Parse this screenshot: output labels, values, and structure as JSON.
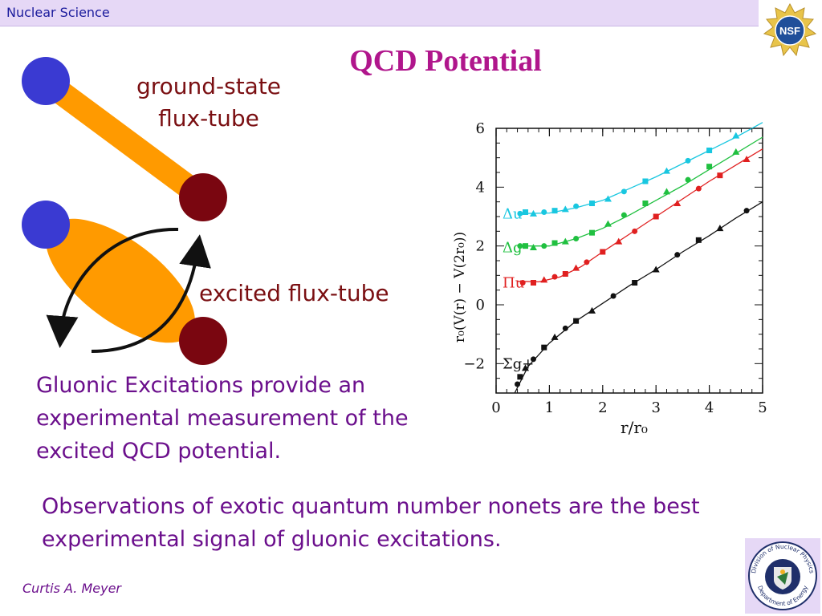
{
  "header": {
    "text": "Nuclear Science"
  },
  "slide": {
    "title": "QCD Potential",
    "ground_state_label_line1": "ground-state",
    "ground_state_label_line2": "flux-tube",
    "excited_label": "excited flux-tube",
    "gluonic_text": "Gluonic Excitations provide an experimental measurement of the excited QCD potential.",
    "observations_text": "Observations of exotic quantum number nonets are the best experimental signal of gluonic excitations."
  },
  "footer": {
    "author": "Curtis A. Meyer"
  },
  "logos": {
    "nsf": {
      "text": "NSF"
    },
    "doe": {
      "text_top": "Division of Nuclear Physics",
      "text_bottom": "Department of Energy"
    }
  },
  "colors": {
    "quark_blue": "#3a3ad2",
    "quark_red": "#7a0610",
    "flux_orange": "#ff9a00",
    "title_magenta": "#b0168c",
    "text_purple": "#6b0f8c",
    "header_bg": "#e6d8f6"
  },
  "chart_data": {
    "type": "scatter",
    "xlabel": "r/r₀",
    "ylabel": "r₀(V(r) − V(2r₀))",
    "xlim": [
      0,
      5
    ],
    "ylim": [
      -3,
      6
    ],
    "x_ticks": [
      "0",
      "1",
      "2",
      "3",
      "4",
      "5"
    ],
    "y_ticks": [
      "−2",
      "0",
      "2",
      "4",
      "6"
    ],
    "series": [
      {
        "name": "Δu",
        "color": "#19c7e0",
        "points": [
          [
            0.45,
            3.1
          ],
          [
            0.55,
            3.15
          ],
          [
            0.7,
            3.1
          ],
          [
            0.9,
            3.15
          ],
          [
            1.1,
            3.2
          ],
          [
            1.3,
            3.25
          ],
          [
            1.5,
            3.35
          ],
          [
            1.8,
            3.45
          ],
          [
            2.1,
            3.6
          ],
          [
            2.4,
            3.85
          ],
          [
            2.8,
            4.2
          ],
          [
            3.2,
            4.55
          ],
          [
            3.6,
            4.9
          ],
          [
            4.0,
            5.25
          ],
          [
            4.5,
            5.75
          ]
        ],
        "curve": [
          [
            0.4,
            3.1
          ],
          [
            1.0,
            3.12
          ],
          [
            1.5,
            3.3
          ],
          [
            2.0,
            3.55
          ],
          [
            2.5,
            3.95
          ],
          [
            3.0,
            4.35
          ],
          [
            3.5,
            4.8
          ],
          [
            4.0,
            5.25
          ],
          [
            4.5,
            5.7
          ],
          [
            5.0,
            6.2
          ]
        ]
      },
      {
        "name": "Δg",
        "color": "#20c040",
        "points": [
          [
            0.45,
            2.0
          ],
          [
            0.55,
            2.0
          ],
          [
            0.7,
            1.95
          ],
          [
            0.9,
            2.0
          ],
          [
            1.1,
            2.1
          ],
          [
            1.3,
            2.15
          ],
          [
            1.5,
            2.25
          ],
          [
            1.8,
            2.45
          ],
          [
            2.1,
            2.75
          ],
          [
            2.4,
            3.05
          ],
          [
            2.8,
            3.45
          ],
          [
            3.2,
            3.85
          ],
          [
            3.6,
            4.25
          ],
          [
            4.0,
            4.7
          ],
          [
            4.5,
            5.2
          ]
        ],
        "curve": [
          [
            0.4,
            2.0
          ],
          [
            1.0,
            2.0
          ],
          [
            1.5,
            2.25
          ],
          [
            2.0,
            2.6
          ],
          [
            2.5,
            3.05
          ],
          [
            3.0,
            3.55
          ],
          [
            3.5,
            4.05
          ],
          [
            4.0,
            4.6
          ],
          [
            4.5,
            5.15
          ],
          [
            5.0,
            5.7
          ]
        ]
      },
      {
        "name": "Πu",
        "color": "#e02020",
        "points": [
          [
            0.5,
            0.75
          ],
          [
            0.7,
            0.75
          ],
          [
            0.9,
            0.85
          ],
          [
            1.1,
            0.95
          ],
          [
            1.3,
            1.05
          ],
          [
            1.5,
            1.25
          ],
          [
            1.7,
            1.45
          ],
          [
            2.0,
            1.8
          ],
          [
            2.3,
            2.15
          ],
          [
            2.6,
            2.5
          ],
          [
            3.0,
            3.0
          ],
          [
            3.4,
            3.45
          ],
          [
            3.8,
            3.95
          ],
          [
            4.2,
            4.4
          ],
          [
            4.7,
            4.95
          ]
        ],
        "curve": [
          [
            0.4,
            0.8
          ],
          [
            0.8,
            0.78
          ],
          [
            1.2,
            0.95
          ],
          [
            1.6,
            1.3
          ],
          [
            2.0,
            1.8
          ],
          [
            2.5,
            2.4
          ],
          [
            3.0,
            3.0
          ],
          [
            3.5,
            3.6
          ],
          [
            4.0,
            4.2
          ],
          [
            4.5,
            4.75
          ],
          [
            5.0,
            5.3
          ]
        ]
      },
      {
        "name": "Σg+",
        "color": "#111111",
        "points": [
          [
            0.4,
            -2.7
          ],
          [
            0.45,
            -2.45
          ],
          [
            0.55,
            -2.15
          ],
          [
            0.7,
            -1.85
          ],
          [
            0.9,
            -1.45
          ],
          [
            1.1,
            -1.1
          ],
          [
            1.3,
            -0.8
          ],
          [
            1.5,
            -0.55
          ],
          [
            1.8,
            -0.2
          ],
          [
            2.2,
            0.3
          ],
          [
            2.6,
            0.75
          ],
          [
            3.0,
            1.2
          ],
          [
            3.4,
            1.7
          ],
          [
            3.8,
            2.2
          ],
          [
            4.2,
            2.6
          ],
          [
            4.7,
            3.2
          ]
        ],
        "curve": [
          [
            0.35,
            -3.0
          ],
          [
            0.6,
            -2.1
          ],
          [
            1.0,
            -1.3
          ],
          [
            1.5,
            -0.55
          ],
          [
            2.0,
            0.05
          ],
          [
            2.5,
            0.65
          ],
          [
            3.0,
            1.2
          ],
          [
            3.5,
            1.8
          ],
          [
            4.0,
            2.35
          ],
          [
            4.5,
            2.95
          ],
          [
            5.0,
            3.5
          ]
        ]
      }
    ]
  }
}
